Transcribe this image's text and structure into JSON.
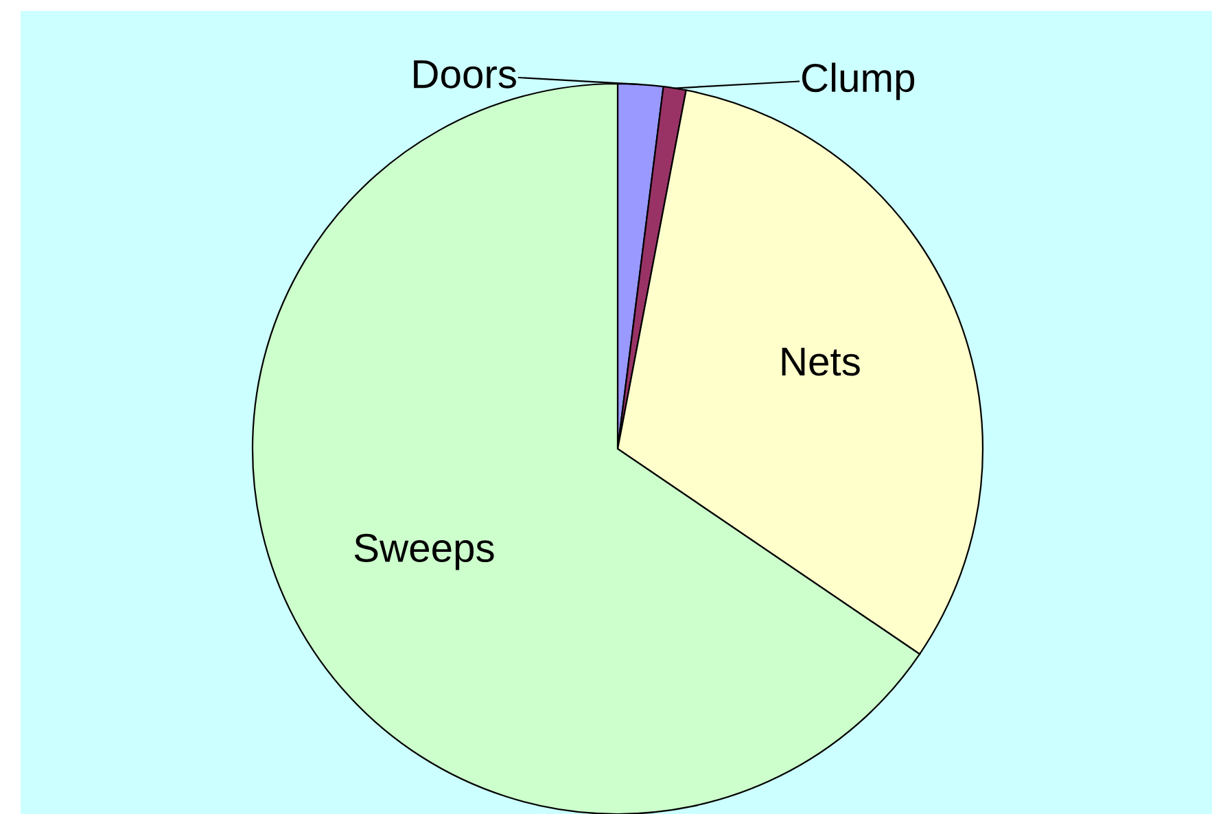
{
  "chart_data": {
    "type": "pie",
    "categories": [
      "Doors",
      "Clump",
      "Nets",
      "Sweeps"
    ],
    "values": [
      2,
      1,
      31.5,
      65.5
    ],
    "colors": [
      "#9999ff",
      "#993366",
      "#ffffcc",
      "#ccffcc"
    ],
    "legend": false
  }
}
